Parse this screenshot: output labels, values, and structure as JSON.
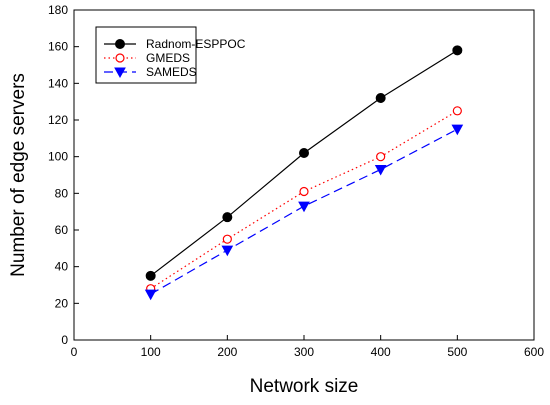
{
  "chart_data": {
    "type": "line",
    "title": "",
    "xlabel": "Network size",
    "ylabel": "Number of edge servers",
    "x": [
      100,
      200,
      300,
      400,
      500
    ],
    "xlim": [
      0,
      600
    ],
    "ylim": [
      0,
      180
    ],
    "xticks": [
      0,
      100,
      200,
      300,
      400,
      500,
      600
    ],
    "yticks": [
      0,
      20,
      40,
      60,
      80,
      100,
      120,
      140,
      160,
      180
    ],
    "grid": false,
    "legend_position": "top-left",
    "series": [
      {
        "name": "Radnom-ESPPOC",
        "values": [
          35,
          67,
          102,
          132,
          158
        ],
        "color": "#000000",
        "line": "solid",
        "marker": "filled-circle"
      },
      {
        "name": "GMEDS",
        "values": [
          28,
          55,
          81,
          100,
          125
        ],
        "color": "#ff0000",
        "line": "dotted",
        "marker": "open-circle"
      },
      {
        "name": "SAMEDS",
        "values": [
          25,
          49,
          73,
          93,
          115
        ],
        "color": "#0000ff",
        "line": "dashed",
        "marker": "filled-triangle-down"
      }
    ]
  }
}
